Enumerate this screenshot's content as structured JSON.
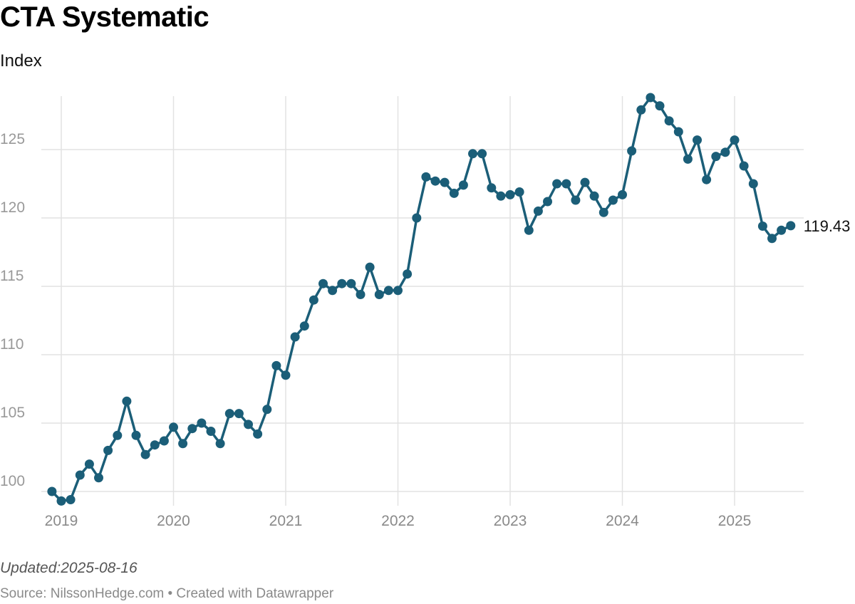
{
  "header": {
    "title": "CTA Systematic",
    "subtitle": "Index"
  },
  "footer": {
    "updated": "Updated:2025-08-16",
    "source": "Source: NilssonHedge.com • Created with Datawrapper"
  },
  "colors": {
    "series": "#1b5e78",
    "grid": "#e2e2e2",
    "tick": "#999999"
  },
  "chart_data": {
    "type": "line",
    "title": "CTA Systematic",
    "subtitle": "Index",
    "xlabel": "",
    "ylabel": "",
    "x_ticks": [
      "2019",
      "2020",
      "2021",
      "2022",
      "2023",
      "2024",
      "2025"
    ],
    "y_ticks": [
      100,
      105,
      110,
      115,
      120,
      125
    ],
    "ylim": [
      99,
      129
    ],
    "xlim": [
      "2018-12",
      "2025-08"
    ],
    "grid": true,
    "markers": true,
    "end_label": "119.43",
    "series": [
      {
        "x": [
          "2018-12",
          "2019-01",
          "2019-02",
          "2019-03",
          "2019-04",
          "2019-05",
          "2019-06",
          "2019-07",
          "2019-08",
          "2019-09",
          "2019-10",
          "2019-11",
          "2019-12",
          "2020-01",
          "2020-02",
          "2020-03",
          "2020-04",
          "2020-05",
          "2020-06",
          "2020-07",
          "2020-08",
          "2020-09",
          "2020-10",
          "2020-11",
          "2020-12",
          "2021-01",
          "2021-02",
          "2021-03",
          "2021-04",
          "2021-05",
          "2021-06",
          "2021-07",
          "2021-08",
          "2021-09",
          "2021-10",
          "2021-11",
          "2021-12",
          "2022-01",
          "2022-02",
          "2022-03",
          "2022-04",
          "2022-05",
          "2022-06",
          "2022-07",
          "2022-08",
          "2022-09",
          "2022-10",
          "2022-11",
          "2022-12",
          "2023-01",
          "2023-02",
          "2023-03",
          "2023-04",
          "2023-05",
          "2023-06",
          "2023-07",
          "2023-08",
          "2023-09",
          "2023-10",
          "2023-11",
          "2023-12",
          "2024-01",
          "2024-02",
          "2024-03",
          "2024-04",
          "2024-05",
          "2024-06",
          "2024-07",
          "2024-08",
          "2024-09",
          "2024-10",
          "2024-11",
          "2024-12",
          "2025-01",
          "2025-02",
          "2025-03",
          "2025-04",
          "2025-05",
          "2025-06",
          "2025-07"
        ],
        "values": [
          100.0,
          99.3,
          99.4,
          101.2,
          102.0,
          101.0,
          103.0,
          104.1,
          106.6,
          104.1,
          102.7,
          103.4,
          103.7,
          104.7,
          103.5,
          104.6,
          105.0,
          104.4,
          103.5,
          105.7,
          105.7,
          104.9,
          104.2,
          106.0,
          109.2,
          108.5,
          111.3,
          112.1,
          114.0,
          115.2,
          114.7,
          115.2,
          115.2,
          114.4,
          116.4,
          114.4,
          114.7,
          114.7,
          115.9,
          120.0,
          123.0,
          122.7,
          122.6,
          121.8,
          122.4,
          124.7,
          124.7,
          122.2,
          121.6,
          121.7,
          121.9,
          119.1,
          120.5,
          121.2,
          122.5,
          122.5,
          121.3,
          122.6,
          121.6,
          120.4,
          121.3,
          121.7,
          124.9,
          127.9,
          128.8,
          128.2,
          127.1,
          126.3,
          124.3,
          125.7,
          122.8,
          124.5,
          124.8,
          125.7,
          123.8,
          122.5,
          119.4,
          118.5,
          119.1,
          119.43
        ]
      }
    ]
  }
}
